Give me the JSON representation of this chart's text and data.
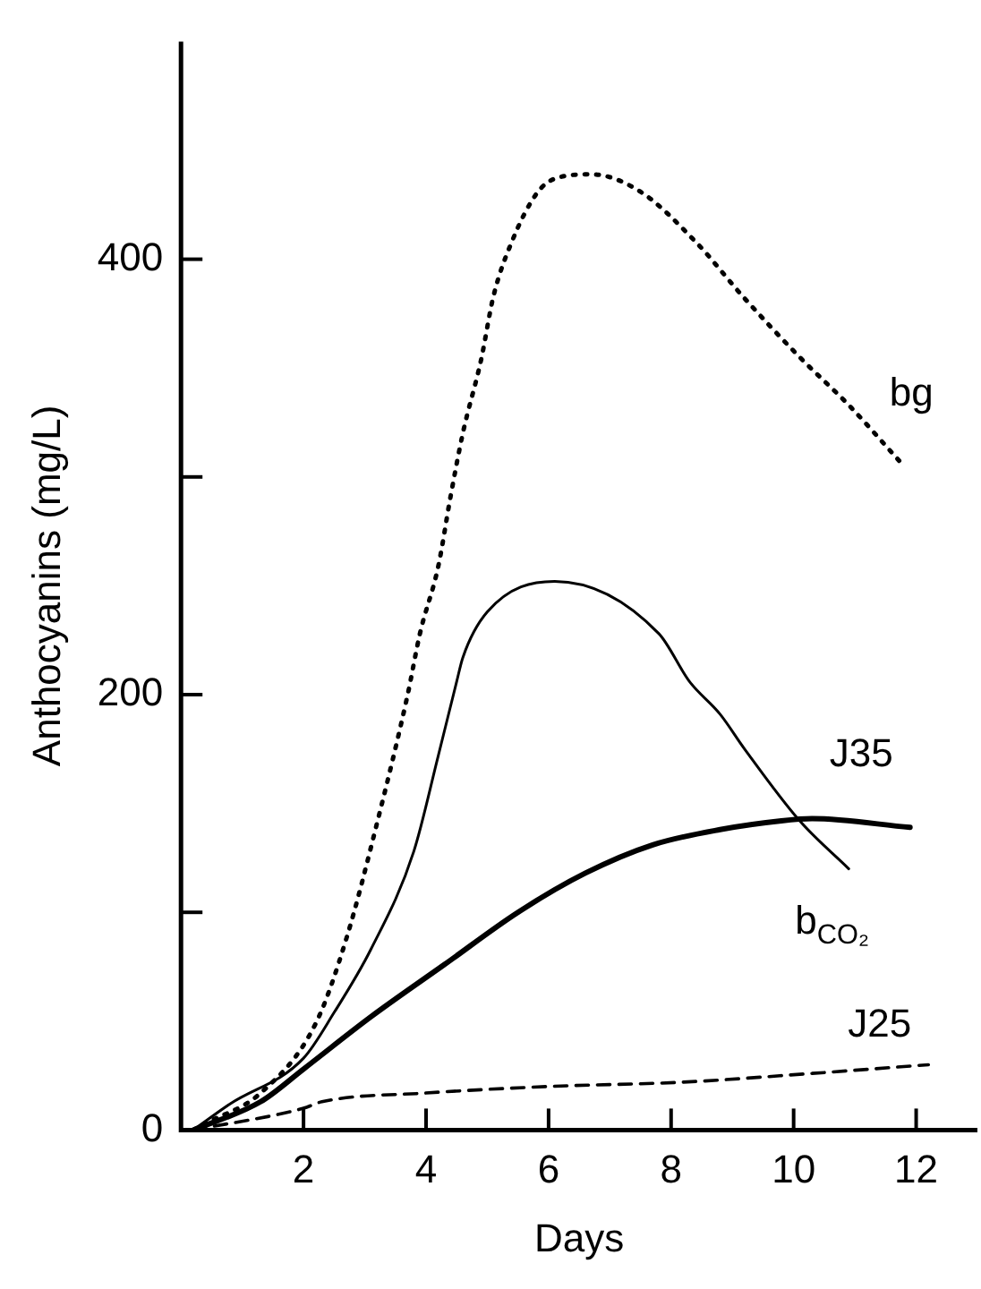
{
  "chart_data": {
    "type": "line",
    "xlabel": "Days",
    "ylabel": "Anthocyanins (mg/L)",
    "xlim": [
      0,
      13
    ],
    "xticks": [
      2,
      4,
      6,
      8,
      10,
      12
    ],
    "ylim": [
      0,
      500
    ],
    "yticks": [
      0,
      {
        "value": 100,
        "label": null
      },
      200,
      {
        "value": 300,
        "label": null
      },
      400
    ],
    "grid": false,
    "legend": false,
    "marker": "none",
    "series": [
      {
        "name": "bg",
        "color": "#000000",
        "line_style": "dotted",
        "x": [
          0.2,
          0.4,
          1.3,
          2.2,
          2.7,
          3.2,
          3.7,
          3.9,
          4.2,
          4.4,
          4.6,
          4.9,
          5.1,
          5.4,
          5.8,
          6.1,
          6.7,
          7.5,
          8.4,
          9.2,
          10.1,
          10.9,
          11.8
        ],
        "values": [
          0,
          3,
          17,
          49,
          88,
          141,
          200,
          228,
          259,
          291,
          320,
          354,
          383,
          408,
          430,
          437,
          439,
          431,
          408,
          382,
          355,
          333,
          305
        ]
      },
      {
        "name": "b$_{CO₂}$",
        "color": "#000000",
        "line_style": "solid",
        "x": [
          0.2,
          0.8,
          2,
          2.5,
          3.1,
          3.8,
          4.2,
          4.5,
          4.6,
          5,
          6.1,
          7.8,
          8.3,
          8.8,
          9.2,
          10.1,
          10.9
        ],
        "values": [
          0,
          12,
          33,
          54,
          83,
          128,
          172,
          206,
          217,
          238,
          252,
          228,
          206,
          191,
          175,
          142,
          120
        ]
      },
      {
        "name": "J35",
        "color": "#000000",
        "line_style": "solid",
        "x": [
          0.2,
          1.3,
          2,
          3.1,
          4.3,
          5.5,
          6.6,
          7.7,
          8.8,
          9.8,
          10.3,
          11.9
        ],
        "values": [
          0,
          13,
          28,
          52,
          76,
          100,
          118,
          131,
          138,
          142,
          143,
          139
        ]
      },
      {
        "name": "J25",
        "color": "#000000",
        "line_style": "dashed",
        "x": [
          0.2,
          2,
          2.3,
          4,
          6,
          8.2,
          10.3,
          12.2
        ],
        "values": [
          0,
          10,
          13,
          17,
          20,
          22,
          26,
          30
        ]
      }
    ]
  }
}
